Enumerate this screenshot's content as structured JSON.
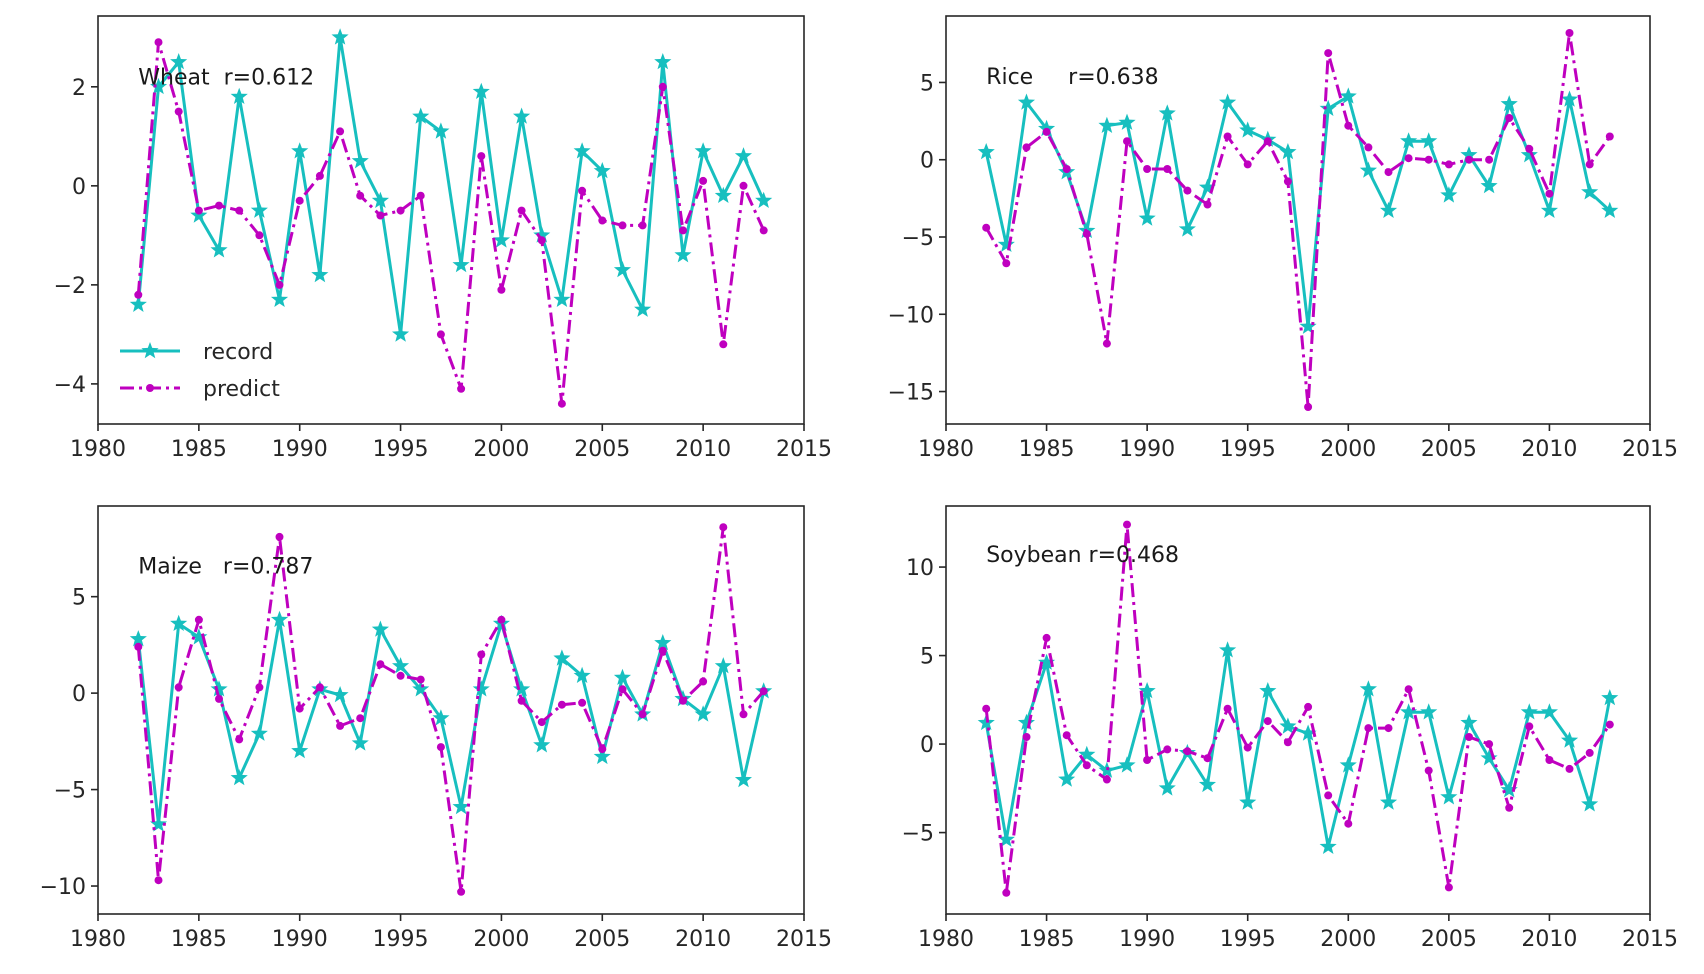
{
  "chart_data": [
    {
      "type": "line",
      "panel": "top-left",
      "annotation": "Wheat  r=0.612",
      "annotation_at": {
        "x": 1982,
        "y": 2.05
      },
      "xlim": [
        1980,
        2015
      ],
      "ylim": [
        -4.81,
        3.43
      ],
      "xticks": [
        1980,
        1985,
        1990,
        1995,
        2000,
        2005,
        2010,
        2015
      ],
      "yticks": [
        -4,
        -2,
        0,
        2
      ],
      "ytick_labels": [
        "−4",
        "−2",
        "0",
        "2"
      ],
      "grid": false,
      "legend": {
        "position": "lower-left",
        "entries": [
          "record",
          "predict"
        ]
      },
      "x": [
        1982,
        1983,
        1984,
        1985,
        1986,
        1987,
        1988,
        1989,
        1990,
        1991,
        1992,
        1993,
        1994,
        1995,
        1996,
        1997,
        1998,
        1999,
        2000,
        2001,
        2002,
        2003,
        2004,
        2005,
        2006,
        2007,
        2008,
        2009,
        2010,
        2011,
        2012,
        2013
      ],
      "series": [
        {
          "name": "record",
          "values": [
            -2.4,
            2.0,
            2.5,
            -0.6,
            -1.3,
            1.8,
            -0.5,
            -2.3,
            0.7,
            -1.8,
            3.0,
            0.5,
            -0.3,
            -3.0,
            1.4,
            1.1,
            -1.6,
            1.9,
            -1.1,
            1.4,
            -1.0,
            -2.3,
            0.7,
            0.3,
            -1.7,
            -2.5,
            2.5,
            -1.4,
            0.7,
            -0.2,
            0.6,
            -0.3
          ]
        },
        {
          "name": "predict",
          "values": [
            -2.2,
            2.9,
            1.5,
            -0.5,
            -0.4,
            -0.5,
            -1.0,
            -2.0,
            -0.3,
            0.2,
            1.1,
            -0.2,
            -0.6,
            -0.5,
            -0.2,
            -3.0,
            -4.1,
            0.6,
            -2.1,
            -0.5,
            -1.1,
            -4.4,
            -0.1,
            -0.7,
            -0.8,
            -0.8,
            2.0,
            -0.9,
            0.1,
            -3.2,
            0.0,
            -0.9
          ]
        }
      ]
    },
    {
      "type": "line",
      "panel": "top-right",
      "annotation": "Rice     r=0.638",
      "annotation_at": {
        "x": 1982,
        "y": 4.9
      },
      "xlim": [
        1980,
        2015
      ],
      "ylim": [
        -17.1,
        9.3
      ],
      "xticks": [
        1980,
        1985,
        1990,
        1995,
        2000,
        2005,
        2010,
        2015
      ],
      "yticks": [
        -15,
        -10,
        -5,
        0,
        5
      ],
      "ytick_labels": [
        "−15",
        "−10",
        "−5",
        "0",
        "5"
      ],
      "grid": false,
      "x": [
        1982,
        1983,
        1984,
        1985,
        1986,
        1987,
        1988,
        1989,
        1990,
        1991,
        1992,
        1993,
        1994,
        1995,
        1996,
        1997,
        1998,
        1999,
        2000,
        2001,
        2002,
        2003,
        2004,
        2005,
        2006,
        2007,
        2008,
        2009,
        2010,
        2011,
        2012,
        2013
      ],
      "series": [
        {
          "name": "record",
          "values": [
            0.5,
            -5.5,
            3.7,
            2.0,
            -0.8,
            -4.6,
            2.2,
            2.4,
            -3.8,
            3.0,
            -4.5,
            -1.8,
            3.7,
            1.9,
            1.3,
            0.5,
            -10.8,
            3.3,
            4.1,
            -0.7,
            -3.3,
            1.2,
            1.2,
            -2.3,
            0.3,
            -1.7,
            3.6,
            0.3,
            -3.3,
            3.9,
            -2.1,
            -3.3
          ]
        },
        {
          "name": "predict",
          "values": [
            -4.4,
            -6.7,
            0.8,
            1.8,
            -0.6,
            -4.8,
            -11.9,
            1.2,
            -0.6,
            -0.6,
            -2.0,
            -2.9,
            1.5,
            -0.3,
            1.2,
            -1.4,
            -16.0,
            6.9,
            2.2,
            0.8,
            -0.8,
            0.1,
            0.0,
            -0.3,
            0.0,
            0.0,
            2.7,
            0.7,
            -2.2,
            8.2,
            -0.3,
            1.5
          ]
        }
      ]
    },
    {
      "type": "line",
      "panel": "bottom-left",
      "annotation": "Maize   r=0.787",
      "annotation_at": {
        "x": 1982,
        "y": 6.2
      },
      "xlim": [
        1980,
        2015
      ],
      "ylim": [
        -11.45,
        9.7
      ],
      "xticks": [
        1980,
        1985,
        1990,
        1995,
        2000,
        2005,
        2010,
        2015
      ],
      "yticks": [
        -10,
        -5,
        0,
        5
      ],
      "ytick_labels": [
        "−10",
        "−5",
        "0",
        "5"
      ],
      "grid": false,
      "x": [
        1982,
        1983,
        1984,
        1985,
        1986,
        1987,
        1988,
        1989,
        1990,
        1991,
        1992,
        1993,
        1994,
        1995,
        1996,
        1997,
        1998,
        1999,
        2000,
        2001,
        2002,
        2003,
        2004,
        2005,
        2006,
        2007,
        2008,
        2009,
        2010,
        2011,
        2012,
        2013
      ],
      "series": [
        {
          "name": "record",
          "values": [
            2.8,
            -6.8,
            3.6,
            2.9,
            0.2,
            -4.4,
            -2.1,
            3.8,
            -3.0,
            0.2,
            -0.1,
            -2.6,
            3.3,
            1.4,
            0.2,
            -1.3,
            -5.9,
            0.2,
            3.6,
            0.2,
            -2.7,
            1.8,
            0.9,
            -3.3,
            0.8,
            -1.1,
            2.6,
            -0.3,
            -1.1,
            1.4,
            -4.5,
            0.1
          ]
        },
        {
          "name": "predict",
          "values": [
            2.4,
            -9.7,
            0.3,
            3.8,
            -0.3,
            -2.4,
            0.3,
            8.1,
            -0.8,
            0.3,
            -1.7,
            -1.3,
            1.5,
            0.9,
            0.7,
            -2.8,
            -10.3,
            2.0,
            3.8,
            -0.4,
            -1.5,
            -0.6,
            -0.5,
            -2.9,
            0.2,
            -1.1,
            2.2,
            -0.4,
            0.6,
            8.6,
            -1.1,
            0.1
          ]
        }
      ]
    },
    {
      "type": "line",
      "panel": "bottom-right",
      "annotation": "Soybean r=0.468",
      "annotation_at": {
        "x": 1982,
        "y": 10.3
      },
      "xlim": [
        1980,
        2015
      ],
      "ylim": [
        -9.6,
        13.45
      ],
      "xticks": [
        1980,
        1985,
        1990,
        1995,
        2000,
        2005,
        2010,
        2015
      ],
      "yticks": [
        -5,
        0,
        5,
        10
      ],
      "ytick_labels": [
        "−5",
        "0",
        "5",
        "10"
      ],
      "grid": false,
      "x": [
        1982,
        1983,
        1984,
        1985,
        1986,
        1987,
        1988,
        1989,
        1990,
        1991,
        1992,
        1993,
        1994,
        1995,
        1996,
        1997,
        1998,
        1999,
        2000,
        2001,
        2002,
        2003,
        2004,
        2005,
        2006,
        2007,
        2008,
        2009,
        2010,
        2011,
        2012,
        2013
      ],
      "series": [
        {
          "name": "record",
          "values": [
            1.2,
            -5.4,
            1.2,
            4.6,
            -2.0,
            -0.6,
            -1.5,
            -1.2,
            3.0,
            -2.5,
            -0.5,
            -2.3,
            5.3,
            -3.3,
            3.0,
            1.0,
            0.6,
            -5.8,
            -1.2,
            3.1,
            -3.3,
            1.8,
            1.8,
            -3.0,
            1.2,
            -0.8,
            -2.6,
            1.8,
            1.8,
            0.2,
            -3.4,
            2.6
          ]
        },
        {
          "name": "predict",
          "values": [
            2.0,
            -8.4,
            0.4,
            6.0,
            0.5,
            -1.2,
            -2.0,
            12.4,
            -0.9,
            -0.3,
            -0.4,
            -0.8,
            2.0,
            -0.2,
            1.3,
            0.1,
            2.1,
            -2.9,
            -4.5,
            0.9,
            0.9,
            3.1,
            -1.5,
            -8.1,
            0.4,
            0.0,
            -3.6,
            1.0,
            -0.9,
            -1.4,
            -0.5,
            1.1
          ]
        }
      ]
    }
  ],
  "colors": {
    "record": "#17bfbf",
    "predict": "#bf00bf",
    "axis": "#262626"
  }
}
